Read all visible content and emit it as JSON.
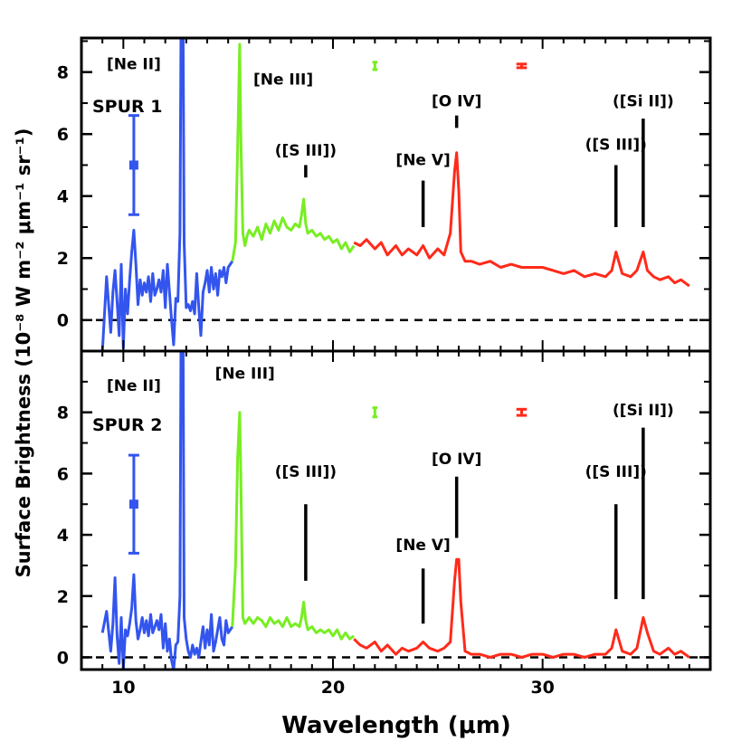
{
  "chart_data": {
    "type": "line",
    "xlabel": "Wavelength (μm)",
    "ylabel": "Surface Brightness (10⁻⁸ W m⁻² μm⁻¹ sr⁻¹)",
    "xlim": [
      8,
      38
    ],
    "x_ticks": [
      10,
      20,
      30
    ],
    "colors": {
      "short_low": "#3355ee",
      "short_high": "#77ee22",
      "long_high": "#ff2a1a"
    },
    "panels": [
      {
        "name": "spur1",
        "label": "SPUR 1",
        "ylim": [
          -1,
          9.1
        ],
        "y_ticks": [
          0,
          2,
          4,
          6,
          8
        ],
        "errorbar": {
          "x": 10.5,
          "y": 5.0,
          "low": 3.4,
          "high": 6.6
        },
        "res_markers": [
          {
            "x": 22.0,
            "y": 8.2,
            "half_width": 0.12,
            "half_height": 0.12,
            "color": "#77ee22"
          },
          {
            "x": 29.0,
            "y": 8.2,
            "half_width": 0.25,
            "half_height": 0.06,
            "color": "#ff2a1a"
          }
        ],
        "line_labels": [
          {
            "text": "[Ne II]",
            "x": 10.5,
            "y": 8.1,
            "anchor": "middle",
            "size": 17
          },
          {
            "text": "[Ne III]",
            "x": 16.2,
            "y": 7.6,
            "anchor": "start",
            "size": 17
          },
          {
            "text": "([S III])",
            "x": 18.7,
            "y": 5.3,
            "anchor": "middle",
            "size": 17
          },
          {
            "text": "[Ne V]",
            "x": 24.3,
            "y": 5.0,
            "anchor": "middle",
            "size": 17
          },
          {
            "text": "[O IV]",
            "x": 25.9,
            "y": 6.9,
            "anchor": "middle",
            "size": 17
          },
          {
            "text": "([S III])",
            "x": 33.5,
            "y": 5.5,
            "anchor": "middle",
            "size": 17
          },
          {
            "text": "([Si II])",
            "x": 34.8,
            "y": 6.9,
            "anchor": "middle",
            "size": 17
          }
        ],
        "marker_lines": [
          {
            "x": 18.7,
            "y1": 4.6,
            "y2": 5.0
          },
          {
            "x": 24.3,
            "y1": 3.0,
            "y2": 4.5
          },
          {
            "x": 25.9,
            "y1": 6.2,
            "y2": 6.6
          },
          {
            "x": 33.5,
            "y1": 3.0,
            "y2": 5.0
          },
          {
            "x": 34.8,
            "y1": 3.0,
            "y2": 6.5
          }
        ],
        "series": [
          {
            "name": "SL (blue)",
            "color": "#3355ee",
            "x": [
              9.0,
              9.2,
              9.4,
              9.5,
              9.6,
              9.7,
              9.8,
              9.9,
              10.0,
              10.1,
              10.2,
              10.3,
              10.4,
              10.5,
              10.6,
              10.7,
              10.8,
              10.9,
              11.0,
              11.1,
              11.2,
              11.3,
              11.4,
              11.5,
              11.6,
              11.7,
              11.8,
              11.9,
              12.0,
              12.1,
              12.2,
              12.3,
              12.4,
              12.5,
              12.6,
              12.7,
              12.75,
              12.85,
              12.9,
              13.0,
              13.1,
              13.2,
              13.3,
              13.4,
              13.5,
              13.6,
              13.7,
              13.8,
              13.9,
              14.0,
              14.1,
              14.2,
              14.3,
              14.4,
              14.5,
              14.6,
              14.7,
              14.8,
              14.9,
              15.0,
              15.1,
              15.2
            ],
            "y": [
              -1.0,
              1.4,
              -0.4,
              0.9,
              1.6,
              0.6,
              -0.5,
              1.8,
              -0.9,
              1.0,
              0.2,
              1.3,
              2.2,
              2.9,
              1.8,
              0.5,
              1.3,
              0.8,
              1.2,
              0.9,
              1.4,
              0.6,
              1.5,
              0.8,
              1.0,
              1.3,
              0.9,
              1.6,
              0.4,
              1.8,
              0.9,
              0.0,
              -0.8,
              0.7,
              0.6,
              2.8,
              9.1,
              9.1,
              2.5,
              0.4,
              0.5,
              0.3,
              0.6,
              0.2,
              1.5,
              0.4,
              -0.5,
              0.9,
              1.2,
              1.6,
              0.9,
              1.7,
              1.0,
              1.5,
              0.8,
              1.6,
              1.4,
              1.7,
              1.2,
              1.7,
              1.8,
              1.9
            ]
          },
          {
            "name": "SH (green)",
            "color": "#77ee22",
            "x": [
              15.2,
              15.35,
              15.45,
              15.55,
              15.6,
              15.7,
              15.8,
              15.9,
              16.0,
              16.2,
              16.4,
              16.6,
              16.8,
              17.0,
              17.2,
              17.4,
              17.6,
              17.8,
              18.0,
              18.2,
              18.4,
              18.5,
              18.6,
              18.7,
              18.8,
              19.0,
              19.2,
              19.4,
              19.6,
              19.8,
              20.0,
              20.2,
              20.4,
              20.6,
              20.8,
              21.0
            ],
            "y": [
              1.9,
              2.5,
              5.5,
              8.9,
              6.0,
              2.8,
              2.4,
              2.7,
              2.9,
              2.7,
              3.0,
              2.6,
              3.1,
              2.8,
              3.2,
              2.9,
              3.3,
              3.0,
              2.9,
              3.1,
              3.0,
              3.4,
              3.9,
              3.1,
              2.8,
              2.9,
              2.7,
              2.8,
              2.6,
              2.7,
              2.5,
              2.6,
              2.3,
              2.5,
              2.2,
              2.4
            ]
          },
          {
            "name": "LH (red)",
            "color": "#ff2a1a",
            "x": [
              21.0,
              21.3,
              21.6,
              22.0,
              22.3,
              22.6,
              23.0,
              23.3,
              23.6,
              24.0,
              24.3,
              24.6,
              25.0,
              25.3,
              25.6,
              25.8,
              25.9,
              26.0,
              26.1,
              26.3,
              26.6,
              27.0,
              27.5,
              28.0,
              28.5,
              29.0,
              29.5,
              30.0,
              30.5,
              31.0,
              31.5,
              32.0,
              32.5,
              33.0,
              33.3,
              33.5,
              33.8,
              34.2,
              34.5,
              34.8,
              35.0,
              35.3,
              35.6,
              36.0,
              36.3,
              36.6,
              37.0
            ],
            "y": [
              2.5,
              2.4,
              2.6,
              2.3,
              2.5,
              2.1,
              2.4,
              2.1,
              2.3,
              2.1,
              2.4,
              2.0,
              2.3,
              2.1,
              2.8,
              4.8,
              5.4,
              4.2,
              2.2,
              1.9,
              1.9,
              1.8,
              1.9,
              1.7,
              1.8,
              1.7,
              1.7,
              1.7,
              1.6,
              1.5,
              1.6,
              1.4,
              1.5,
              1.4,
              1.6,
              2.2,
              1.5,
              1.4,
              1.6,
              2.2,
              1.6,
              1.4,
              1.3,
              1.4,
              1.2,
              1.3,
              1.1
            ]
          }
        ]
      },
      {
        "name": "spur2",
        "label": "SPUR 2",
        "ylim": [
          -0.4,
          10.0
        ],
        "y_ticks": [
          0,
          2,
          4,
          6,
          8
        ],
        "errorbar": {
          "x": 10.5,
          "y": 5.0,
          "low": 3.4,
          "high": 6.6
        },
        "res_markers": [
          {
            "x": 22.0,
            "y": 8.0,
            "half_width": 0.12,
            "half_height": 0.15,
            "color": "#77ee22"
          },
          {
            "x": 29.0,
            "y": 8.0,
            "half_width": 0.25,
            "half_height": 0.1,
            "color": "#ff2a1a"
          }
        ],
        "line_labels": [
          {
            "text": "[Ne II]",
            "x": 10.5,
            "y": 8.7,
            "anchor": "middle",
            "size": 17
          },
          {
            "text": "[Ne III]",
            "x": 15.8,
            "y": 9.1,
            "anchor": "middle",
            "size": 17
          },
          {
            "text": "([S III])",
            "x": 18.7,
            "y": 5.9,
            "anchor": "middle",
            "size": 17
          },
          {
            "text": "[Ne V]",
            "x": 24.3,
            "y": 3.5,
            "anchor": "middle",
            "size": 17
          },
          {
            "text": "[O IV]",
            "x": 25.9,
            "y": 6.3,
            "anchor": "middle",
            "size": 17
          },
          {
            "text": "([S III])",
            "x": 33.5,
            "y": 5.9,
            "anchor": "middle",
            "size": 17
          },
          {
            "text": "([Si II])",
            "x": 34.8,
            "y": 7.9,
            "anchor": "middle",
            "size": 17
          }
        ],
        "marker_lines": [
          {
            "x": 18.7,
            "y1": 2.5,
            "y2": 5.0
          },
          {
            "x": 24.3,
            "y1": 1.1,
            "y2": 2.9
          },
          {
            "x": 25.9,
            "y1": 3.9,
            "y2": 5.9
          },
          {
            "x": 33.5,
            "y1": 1.9,
            "y2": 5.0
          },
          {
            "x": 34.8,
            "y1": 1.9,
            "y2": 7.5
          }
        ],
        "series": [
          {
            "name": "SL (blue)",
            "color": "#3355ee",
            "x": [
              9.0,
              9.2,
              9.4,
              9.5,
              9.6,
              9.7,
              9.8,
              9.9,
              10.0,
              10.1,
              10.2,
              10.3,
              10.4,
              10.5,
              10.6,
              10.7,
              10.8,
              10.9,
              11.0,
              11.1,
              11.2,
              11.3,
              11.4,
              11.5,
              11.6,
              11.7,
              11.8,
              11.9,
              12.0,
              12.1,
              12.2,
              12.3,
              12.4,
              12.5,
              12.6,
              12.7,
              12.75,
              12.85,
              12.9,
              13.0,
              13.1,
              13.2,
              13.3,
              13.4,
              13.5,
              13.6,
              13.7,
              13.8,
              13.9,
              14.0,
              14.1,
              14.2,
              14.3,
              14.4,
              14.5,
              14.6,
              14.7,
              14.8,
              14.9,
              15.0,
              15.1,
              15.2
            ],
            "y": [
              0.8,
              1.5,
              0.2,
              1.1,
              2.6,
              0.7,
              -0.2,
              1.3,
              -0.4,
              0.9,
              0.7,
              1.1,
              1.6,
              2.7,
              1.2,
              0.6,
              0.9,
              1.3,
              0.8,
              1.2,
              0.7,
              1.4,
              0.8,
              1.0,
              1.2,
              0.9,
              1.4,
              0.3,
              1.1,
              0.2,
              0.6,
              -0.1,
              -0.4,
              0.4,
              0.5,
              2.0,
              10.0,
              10.0,
              1.3,
              0.6,
              0.2,
              0.0,
              0.4,
              0.1,
              0.3,
              0.0,
              0.5,
              1.0,
              0.3,
              0.9,
              0.4,
              1.4,
              0.2,
              0.5,
              0.9,
              1.3,
              0.6,
              0.4,
              1.2,
              0.8,
              0.9,
              1.0
            ]
          },
          {
            "name": "SH (green)",
            "color": "#77ee22",
            "x": [
              15.2,
              15.35,
              15.45,
              15.55,
              15.6,
              15.7,
              15.8,
              15.9,
              16.0,
              16.2,
              16.4,
              16.6,
              16.8,
              17.0,
              17.2,
              17.4,
              17.6,
              17.8,
              18.0,
              18.2,
              18.4,
              18.5,
              18.6,
              18.7,
              18.8,
              19.0,
              19.2,
              19.4,
              19.6,
              19.8,
              20.0,
              20.2,
              20.4,
              20.6,
              20.8,
              21.0
            ],
            "y": [
              1.0,
              3.0,
              6.5,
              8.0,
              6.0,
              1.3,
              1.1,
              1.2,
              1.3,
              1.1,
              1.3,
              1.2,
              1.0,
              1.3,
              1.1,
              1.2,
              1.0,
              1.3,
              1.0,
              1.1,
              1.0,
              1.3,
              1.8,
              1.2,
              0.9,
              1.0,
              0.8,
              0.9,
              0.8,
              0.9,
              0.7,
              0.9,
              0.6,
              0.8,
              0.6,
              0.7
            ]
          },
          {
            "name": "LH (red)",
            "color": "#ff2a1a",
            "x": [
              21.0,
              21.3,
              21.6,
              22.0,
              22.3,
              22.6,
              23.0,
              23.3,
              23.6,
              24.0,
              24.3,
              24.6,
              25.0,
              25.3,
              25.6,
              25.8,
              25.9,
              26.0,
              26.1,
              26.3,
              26.6,
              27.0,
              27.5,
              28.0,
              28.5,
              29.0,
              29.5,
              30.0,
              30.5,
              31.0,
              31.5,
              32.0,
              32.5,
              33.0,
              33.3,
              33.5,
              33.8,
              34.2,
              34.5,
              34.8,
              35.0,
              35.3,
              35.6,
              36.0,
              36.3,
              36.6,
              37.0
            ],
            "y": [
              0.6,
              0.4,
              0.3,
              0.5,
              0.2,
              0.4,
              0.1,
              0.3,
              0.2,
              0.3,
              0.5,
              0.3,
              0.2,
              0.3,
              0.5,
              2.5,
              3.2,
              3.2,
              1.8,
              0.2,
              0.1,
              0.1,
              0.0,
              0.1,
              0.1,
              0.0,
              0.1,
              0.1,
              0.0,
              0.1,
              0.1,
              0.0,
              0.1,
              0.1,
              0.3,
              0.9,
              0.2,
              0.1,
              0.3,
              1.3,
              0.8,
              0.2,
              0.1,
              0.3,
              0.1,
              0.2,
              0.0
            ]
          }
        ]
      }
    ]
  }
}
